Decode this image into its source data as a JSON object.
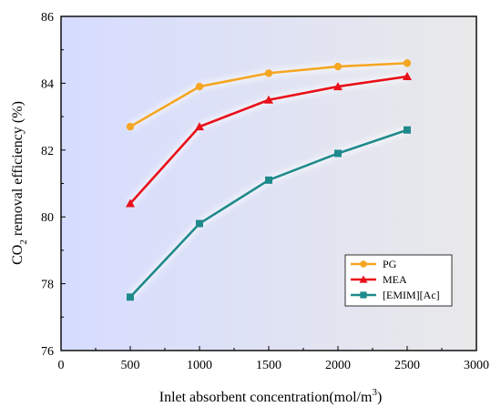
{
  "chart_data": {
    "type": "line",
    "xlabel": "Inlet absorbent concentration(mol/m",
    "xlabel_sup": "3",
    "xlabel_close": ")",
    "ylabel_pre": "CO",
    "ylabel_sub": "2",
    "ylabel_post": " removal efficiency (%)",
    "xlim": [
      0,
      3000
    ],
    "ylim": [
      76,
      86
    ],
    "x_ticks": [
      0,
      500,
      1000,
      1500,
      2000,
      2500,
      3000
    ],
    "y_ticks": [
      76,
      78,
      80,
      82,
      84,
      86
    ],
    "grid": false,
    "background_gradient": [
      "#d6dcff",
      "#e9e9e9"
    ],
    "legend_position": "bottom-right",
    "series": [
      {
        "name": "PG",
        "marker": "circle",
        "color": "#F5A623",
        "x": [
          500,
          1000,
          1500,
          2000,
          2500
        ],
        "values": [
          82.7,
          83.9,
          84.3,
          84.5,
          84.6
        ]
      },
      {
        "name": "MEA",
        "marker": "triangle",
        "color": "#E8101A",
        "x": [
          500,
          1000,
          1500,
          2000,
          2500
        ],
        "values": [
          80.4,
          82.7,
          83.5,
          83.9,
          84.2
        ]
      },
      {
        "name": "[EMIM][Ac]",
        "marker": "square",
        "color": "#1F8A8C",
        "x": [
          500,
          1000,
          1500,
          2000,
          2500
        ],
        "values": [
          77.6,
          79.8,
          81.1,
          81.9,
          82.6
        ]
      }
    ]
  }
}
